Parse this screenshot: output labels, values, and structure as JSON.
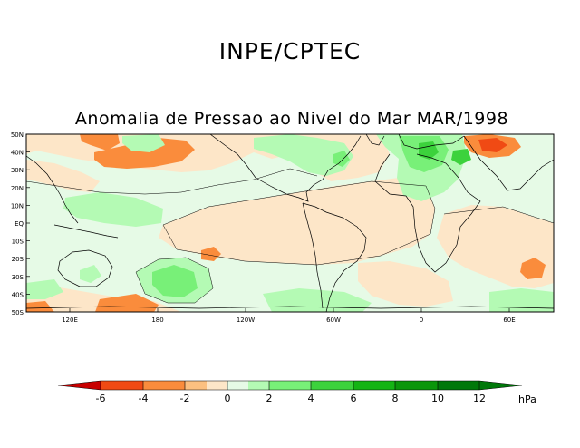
{
  "header": {
    "title": "INPE/CPTEC"
  },
  "map": {
    "title": "Anomalia de Pressao ao Nivel do Mar MAR/1998",
    "lat_labels": [
      "50N",
      "40N",
      "30N",
      "20N",
      "10N",
      "EQ",
      "10S",
      "20S",
      "30S",
      "40S",
      "50S"
    ],
    "lon_labels": [
      "120E",
      "180",
      "120W",
      "60W",
      "0",
      "60E"
    ]
  },
  "colorbar": {
    "tick_labels": [
      "-6",
      "-4",
      "-2",
      "0",
      "2",
      "4",
      "6",
      "8",
      "10",
      "12"
    ],
    "unit": "hPa",
    "colors": [
      "#c80000",
      "#f04a14",
      "#fa8c3c",
      "#fcc080",
      "#fde6c8",
      "#e6fae6",
      "#b4fab4",
      "#78f078",
      "#3cd23c",
      "#14b414",
      "#0a960a",
      "#00780a"
    ]
  },
  "colors": {
    "background": "#ffffff",
    "neutral_negative": "#fde6c8",
    "neutral_positive": "#e6fae6",
    "coast": "#000000"
  }
}
